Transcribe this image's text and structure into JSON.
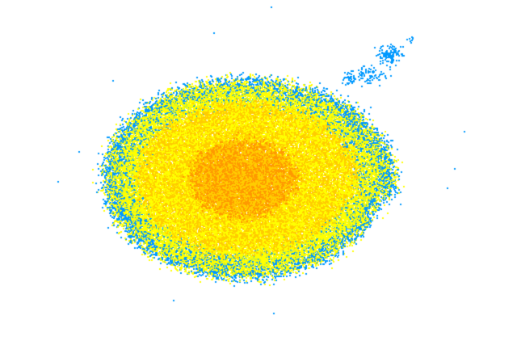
{
  "colors": {
    "background": "#ffffff",
    "core": "#ff9900",
    "dense": "#ffcc00",
    "medium": "#ffff00",
    "sparse_green": "#ccee33",
    "edge": "#0099ff"
  }
}
